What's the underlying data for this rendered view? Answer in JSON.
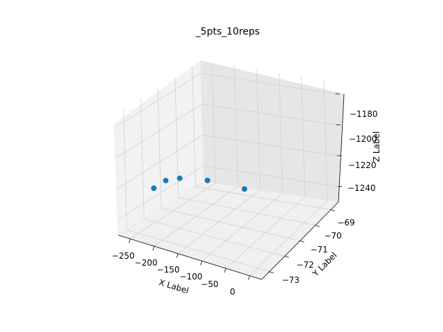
{
  "chart_data": {
    "type": "scatter",
    "title": "_5pts_10reps",
    "xlabel": "X Label",
    "ylabel": "Y Label",
    "zlabel": "Z Label",
    "x_ticks": [
      "−250",
      "−200",
      "−150",
      "−100",
      "−50",
      "0"
    ],
    "y_ticks": [
      "−73",
      "−72",
      "−71",
      "−70",
      "−69"
    ],
    "z_ticks": [
      "−1240",
      "−1220",
      "−1200",
      "−1180"
    ],
    "grid": true,
    "projection": "3d",
    "marker_color": "#1f77b4",
    "points": [
      {
        "x": -230,
        "y": -72.6,
        "z": -1222
      },
      {
        "x": -215,
        "y": -72.3,
        "z": -1218
      },
      {
        "x": -185,
        "y": -72.3,
        "z": -1214
      },
      {
        "x": -140,
        "y": -71.9,
        "z": -1215
      },
      {
        "x": -75,
        "y": -71.5,
        "z": -1219
      }
    ]
  }
}
